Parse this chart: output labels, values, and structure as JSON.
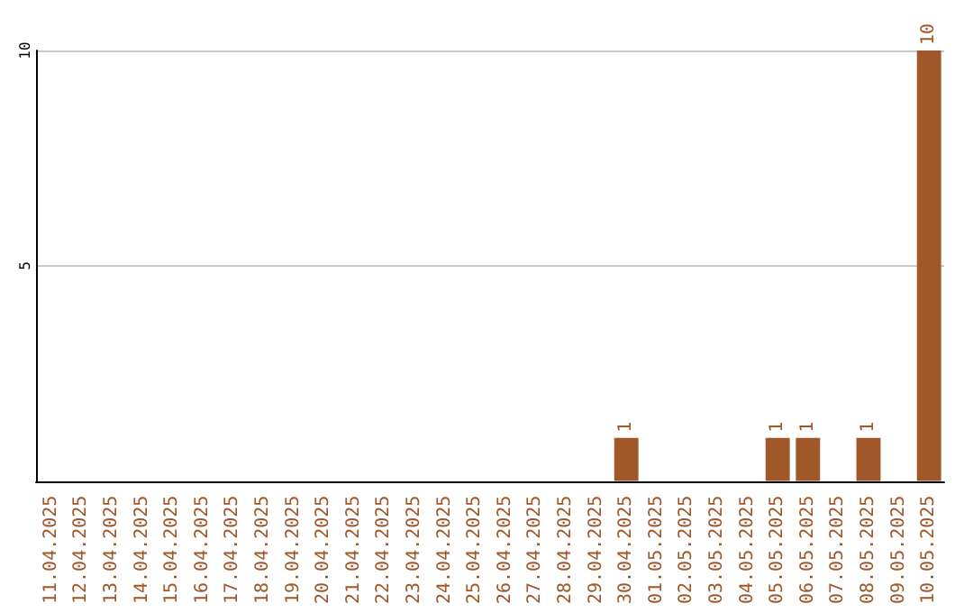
{
  "chart_data": {
    "type": "bar",
    "categories": [
      "11.04.2025",
      "12.04.2025",
      "13.04.2025",
      "14.04.2025",
      "15.04.2025",
      "16.04.2025",
      "17.04.2025",
      "18.04.2025",
      "19.04.2025",
      "20.04.2025",
      "21.04.2025",
      "22.04.2025",
      "23.04.2025",
      "24.04.2025",
      "25.04.2025",
      "26.04.2025",
      "27.04.2025",
      "28.04.2025",
      "29.04.2025",
      "30.04.2025",
      "01.05.2025",
      "02.05.2025",
      "03.05.2025",
      "04.05.2025",
      "05.05.2025",
      "06.05.2025",
      "07.05.2025",
      "08.05.2025",
      "09.05.2025",
      "10.05.2025"
    ],
    "values": [
      0,
      0,
      0,
      0,
      0,
      0,
      0,
      0,
      0,
      0,
      0,
      0,
      0,
      0,
      0,
      0,
      0,
      0,
      0,
      1,
      0,
      0,
      0,
      0,
      1,
      1,
      0,
      1,
      0,
      10
    ],
    "value_labels": [
      null,
      null,
      null,
      null,
      null,
      null,
      null,
      null,
      null,
      null,
      null,
      null,
      null,
      null,
      null,
      null,
      null,
      null,
      null,
      "1",
      null,
      null,
      null,
      null,
      "1",
      "1",
      null,
      "1",
      null,
      "10"
    ],
    "color": "#a0572a",
    "ylim": [
      0,
      10
    ],
    "yticks": [
      {
        "value": 0,
        "label": null
      },
      5,
      10
    ],
    "grid": "y"
  }
}
